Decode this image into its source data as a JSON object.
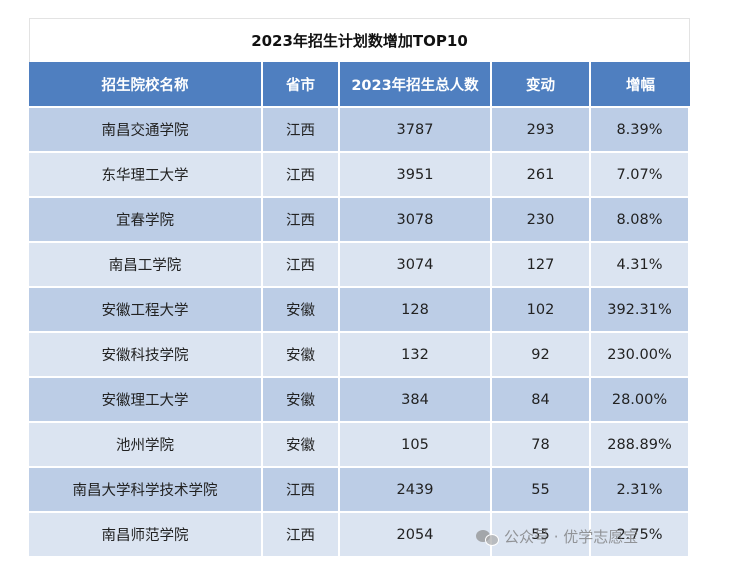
{
  "title": "2023年招生计划数增加TOP10",
  "headers": [
    "招生院校名称",
    "省市",
    "2023年招生总人数",
    "变动",
    "增幅"
  ],
  "rows": [
    [
      "南昌交通学院",
      "江西",
      "3787",
      "293",
      "8.39%"
    ],
    [
      "东华理工大学",
      "江西",
      "3951",
      "261",
      "7.07%"
    ],
    [
      "宜春学院",
      "江西",
      "3078",
      "230",
      "8.08%"
    ],
    [
      "南昌工学院",
      "江西",
      "3074",
      "127",
      "4.31%"
    ],
    [
      "安徽工程大学",
      "安徽",
      "128",
      "102",
      "392.31%"
    ],
    [
      "安徽科技学院",
      "安徽",
      "132",
      "92",
      "230.00%"
    ],
    [
      "安徽理工大学",
      "安徽",
      "384",
      "84",
      "28.00%"
    ],
    [
      "池州学院",
      "安徽",
      "105",
      "78",
      "288.89%"
    ],
    [
      "南昌大学科学技术学院",
      "江西",
      "2439",
      "55",
      "2.31%"
    ],
    [
      "南昌师范学院",
      "江西",
      "2054",
      "55",
      "2.75%"
    ]
  ],
  "watermark": {
    "text": "公众号 · 优学志愿宝",
    "icon": "wechat-icon"
  },
  "colors": {
    "header_bg": "#4f7fc0",
    "row_odd": "#bccde6",
    "row_even": "#dbe4f1"
  }
}
